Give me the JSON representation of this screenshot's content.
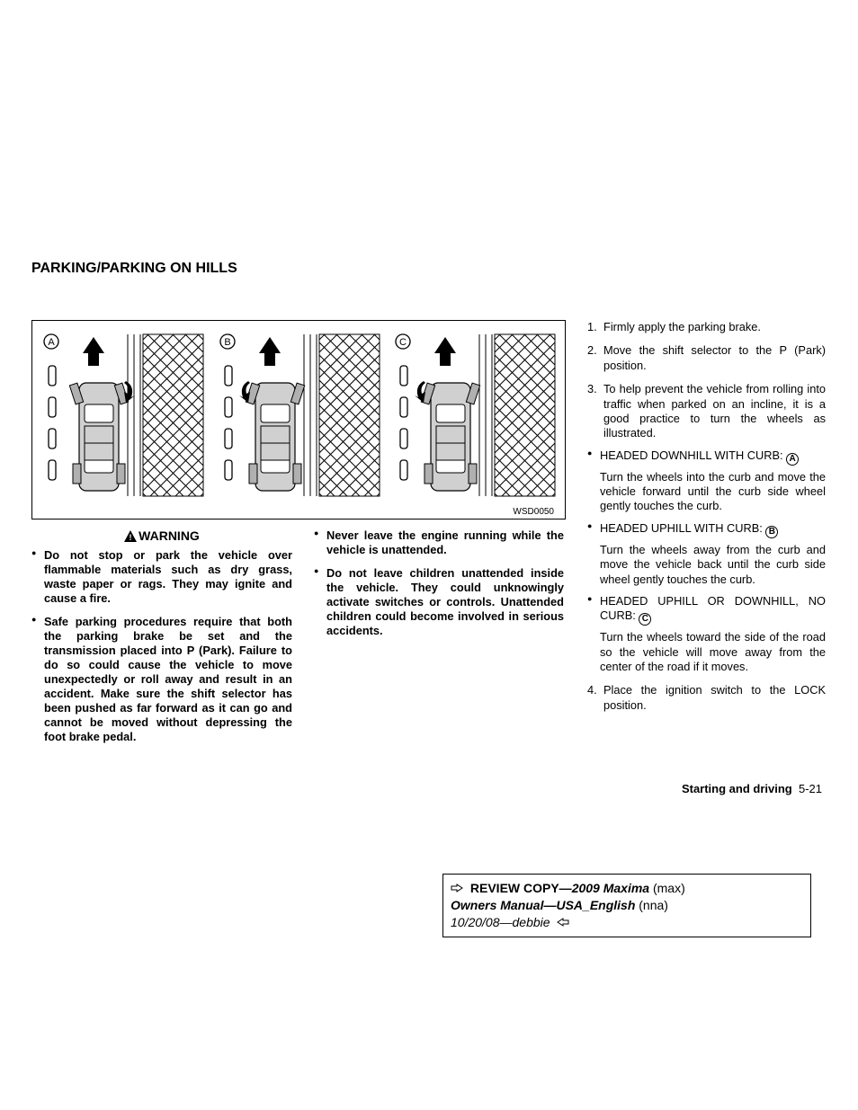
{
  "section_title": "PARKING/PARKING ON HILLS",
  "figure": {
    "code": "WSD0050",
    "panels": [
      {
        "label": "A",
        "wheel_dir": "left"
      },
      {
        "label": "B",
        "wheel_dir": "right"
      },
      {
        "label": "C",
        "wheel_dir": "right"
      }
    ],
    "colors": {
      "stroke": "#000000",
      "fill_car": "#d0d0d0",
      "fill_wheel": "#b0b0b0",
      "bg": "#ffffff"
    }
  },
  "warning": {
    "title": "WARNING",
    "items": [
      "Do not stop or park the vehicle over flammable materials such as dry grass, waste paper or rags. They may ignite and cause a fire.",
      "Safe parking procedures require that both the parking brake be set and the transmission placed into P (Park). Failure to do so could cause the vehicle to move unexpectedly or roll away and result in an accident. Make sure the shift selector has been pushed as far forward as it can go and cannot be moved without depressing the foot brake pedal."
    ]
  },
  "warning_col2": {
    "items": [
      "Never leave the engine running while the vehicle is unattended.",
      "Do not leave children unattended inside the vehicle. They could unknowingly activate switches or controls. Unattended children could become involved in serious accidents."
    ]
  },
  "steps": {
    "s1": "Firmly apply the parking brake.",
    "s2": " Move the shift selector to the P (Park) position.",
    "s3_intro": "To help prevent the vehicle from rolling into traffic when parked on an incline, it is a good practice to turn the wheels as illustrated.",
    "sub": [
      {
        "heading_pre": "HEADED DOWNHILL WITH CURB: ",
        "letter": "A",
        "body": "Turn the wheels into the curb and move the vehicle forward until the curb side wheel gently touches the curb."
      },
      {
        "heading_pre": "HEADED UPHILL WITH CURB: ",
        "letter": "B",
        "body": "Turn the wheels away from the curb and move the vehicle back until the curb side wheel gently touches the curb."
      },
      {
        "heading_pre": "HEADED UPHILL OR DOWNHILL, NO CURB: ",
        "letter": "C",
        "body": "Turn the wheels toward the side of the road so the vehicle will move away from the center of the road if it moves."
      }
    ],
    "s4": "Place the ignition switch to the LOCK position."
  },
  "footer": {
    "section": "Starting and driving",
    "page": "5-21"
  },
  "review": {
    "l1_a": "REVIEW COPY—",
    "l1_b": "2009 Maxima",
    "l1_c": "(max)",
    "l2_a": "Owners Manual—USA_English",
    "l2_b": "(nna)",
    "l3": "10/20/08—debbie"
  }
}
